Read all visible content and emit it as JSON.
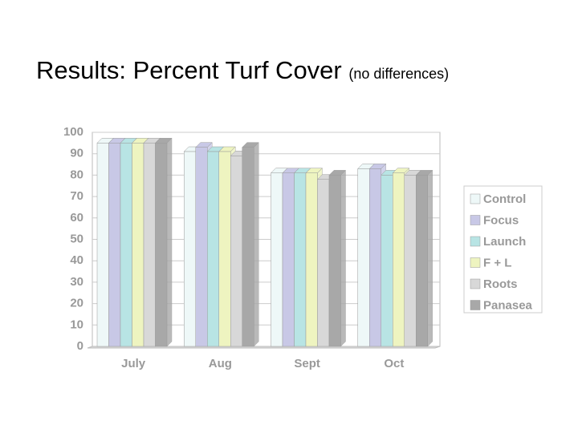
{
  "title": "Results: Percent Turf Cover",
  "title_note": "(no differences)",
  "chart_data": {
    "type": "bar",
    "categories": [
      "July",
      "Aug",
      "Sept",
      "Oct"
    ],
    "series": [
      {
        "name": "Control",
        "color": "#eef8f8",
        "values": [
          95,
          91,
          81,
          83
        ]
      },
      {
        "name": "Focus",
        "color": "#c8c8e6",
        "values": [
          95,
          93,
          81,
          83
        ]
      },
      {
        "name": "Launch",
        "color": "#b8e4e4",
        "values": [
          95,
          91,
          81,
          80
        ]
      },
      {
        "name": "F + L",
        "color": "#eef4c0",
        "values": [
          95,
          91,
          81,
          81
        ]
      },
      {
        "name": "Roots",
        "color": "#d8d8d8",
        "values": [
          95,
          89,
          78,
          80
        ]
      },
      {
        "name": "Panasea",
        "color": "#a8a8a8",
        "values": [
          95,
          93,
          80,
          80
        ]
      }
    ],
    "ylim": [
      0,
      100
    ],
    "yticks": [
      0,
      10,
      20,
      30,
      40,
      50,
      60,
      70,
      80,
      90,
      100
    ],
    "grid": true,
    "legend": "right"
  }
}
